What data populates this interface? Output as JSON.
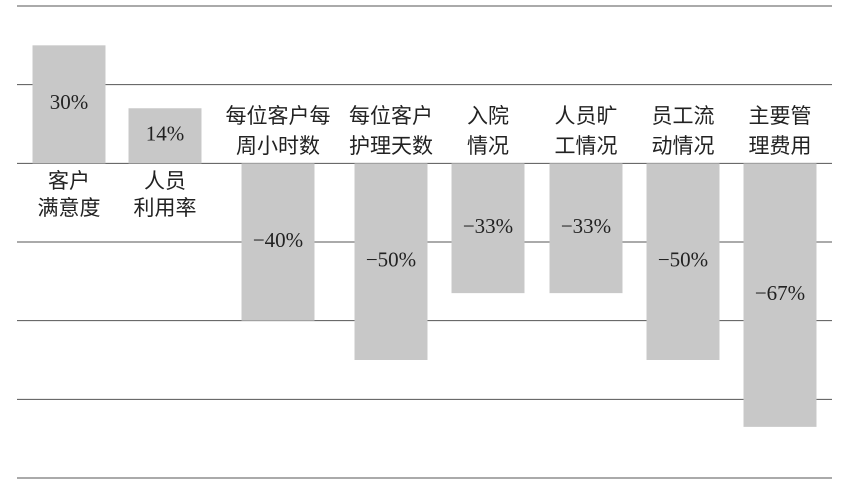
{
  "chart_data": {
    "type": "bar",
    "categories": [
      [
        "客户",
        "满意度"
      ],
      [
        "人员",
        "利用率"
      ],
      [
        "每位客户每",
        "周小时数"
      ],
      [
        "每位客户",
        "护理天数"
      ],
      [
        "入院",
        "情况"
      ],
      [
        "人员旷",
        "工情况"
      ],
      [
        "员工流",
        "动情况"
      ],
      [
        "主要管",
        "理费用"
      ]
    ],
    "values": [
      30,
      14,
      -40,
      -50,
      -33,
      -33,
      -50,
      -67
    ],
    "value_labels": [
      "30%",
      "14%",
      "−40%",
      "−50%",
      "−33%",
      "−33%",
      "−50%",
      "−67%"
    ],
    "color": "#c8c8c8",
    "ylim": [
      -80,
      40
    ],
    "yticks": [
      -80,
      -60,
      -40,
      -20,
      0,
      20,
      40
    ],
    "grid": true
  }
}
